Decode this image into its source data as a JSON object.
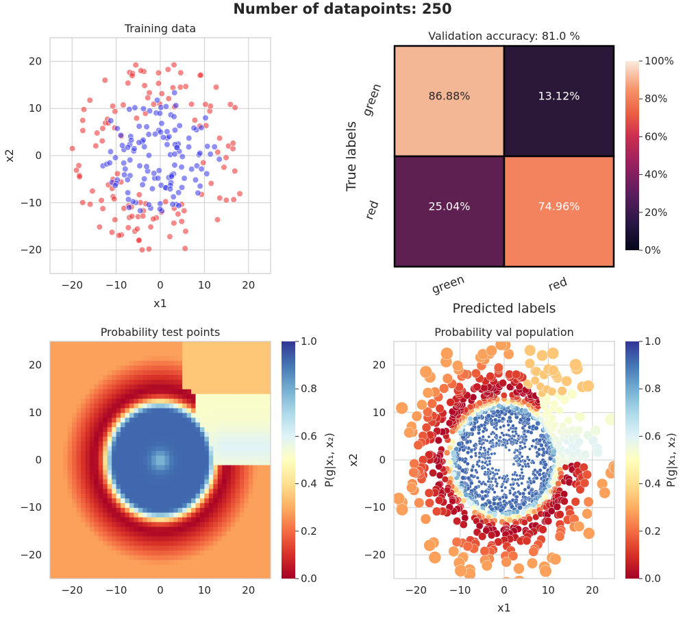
{
  "figure": {
    "suptitle": "Number of datapoints: 250"
  },
  "colors": {
    "green_class": "#3333ee",
    "red_class": "#ee2a2a",
    "grid": "#cccccc",
    "spine": "#cccccc"
  },
  "chart_data": [
    {
      "id": "training",
      "type": "scatter",
      "title": "Training data",
      "xlabel": "x1",
      "ylabel": "x2",
      "xlim": [
        -25,
        25
      ],
      "ylim": [
        -25,
        25
      ],
      "xticks": [
        "−20",
        "−10",
        "0",
        "10",
        "20"
      ],
      "yticks": [
        "−20",
        "−10",
        "0",
        "10",
        "20"
      ],
      "grid": true,
      "series": [
        {
          "color": "#3333ee",
          "n": 125,
          "distribution": "spiral arm, radius 3-14"
        },
        {
          "color": "#ee2a2a",
          "n": 125,
          "distribution": "outer ring, radius 9-21"
        }
      ]
    },
    {
      "id": "confusion",
      "type": "heatmap",
      "title": "Validation accuracy: 81.0 %",
      "xlabel": "Predicted labels",
      "ylabel": "True labels",
      "x_categories": [
        "green",
        "red"
      ],
      "y_categories": [
        "green",
        "red"
      ],
      "values": [
        [
          86.88,
          13.12
        ],
        [
          25.04,
          74.96
        ]
      ],
      "cell_text": [
        [
          "86.88%",
          "13.12%"
        ],
        [
          "25.04%",
          "74.96%"
        ]
      ],
      "colorbar": {
        "ticks": [
          "0%",
          "20%",
          "40%",
          "60%",
          "80%",
          "100%"
        ],
        "range": [
          0,
          100
        ],
        "colormap": "rocket"
      }
    },
    {
      "id": "prob_test",
      "type": "heatmap",
      "title": "Probability test points",
      "xlim": [
        -25,
        25
      ],
      "ylim": [
        -25,
        25
      ],
      "xticks": [
        "−20",
        "−10",
        "0",
        "10",
        "20"
      ],
      "yticks": [
        "−20",
        "−10",
        "0",
        "10",
        "20"
      ],
      "colorbar": {
        "label": "P(g|x₁, x₂)",
        "ticks": [
          "0.0",
          "0.2",
          "0.4",
          "0.6",
          "0.8",
          "1.0"
        ],
        "range": [
          0,
          1
        ],
        "colormap": "RdYlBu"
      }
    },
    {
      "id": "prob_val",
      "type": "scatter",
      "title": "Probability val population",
      "xlabel": "x1",
      "ylabel": "x2",
      "xlim": [
        -25,
        25
      ],
      "ylim": [
        -25,
        25
      ],
      "xticks": [
        "−20",
        "−10",
        "0",
        "10",
        "20"
      ],
      "yticks": [
        "−20",
        "−10",
        "0",
        "10",
        "20"
      ],
      "grid": true,
      "colorbar": {
        "label": "P(g|x₁, x₂)",
        "ticks": [
          "0.0",
          "0.2",
          "0.4",
          "0.6",
          "0.8",
          "1.0"
        ],
        "range": [
          0,
          1
        ],
        "colormap": "RdYlBu"
      }
    }
  ]
}
